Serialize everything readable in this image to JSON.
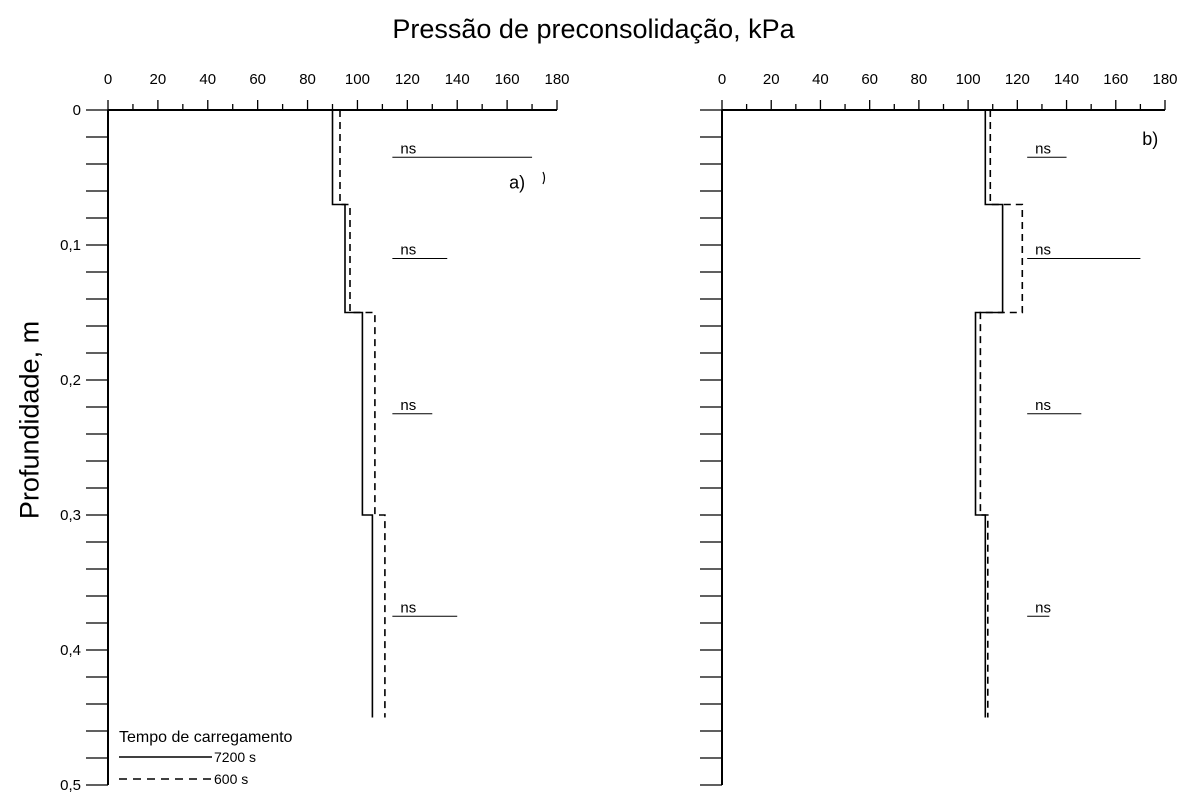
{
  "chart_data": {
    "type": "line",
    "title": "Pressão de preconsolidação, kPa",
    "ylabel": "Profundidade, m",
    "xlim": [
      0,
      180
    ],
    "ylim": [
      0,
      0.5
    ],
    "y_inverted": true,
    "x_ticks": [
      "0",
      "20",
      "40",
      "60",
      "80",
      "100",
      "120",
      "140",
      "160",
      "180"
    ],
    "y_ticks": [
      "0",
      "0,1",
      "0,2",
      "0,3",
      "0,4",
      "0,5"
    ],
    "legend": {
      "title": "Tempo de carregamento",
      "entries": [
        {
          "label": "7200 s",
          "style": "solid"
        },
        {
          "label": "600 s",
          "style": "dashed"
        }
      ]
    },
    "panels": [
      {
        "label": "a)",
        "series": [
          {
            "name": "7200 s",
            "style": "solid",
            "points": [
              [
                90,
                0.0
              ],
              [
                90,
                0.07
              ],
              [
                95,
                0.07
              ],
              [
                95,
                0.15
              ],
              [
                102,
                0.15
              ],
              [
                102,
                0.3
              ],
              [
                106,
                0.3
              ],
              [
                106,
                0.45
              ]
            ]
          },
          {
            "name": "600 s",
            "style": "dashed",
            "points": [
              [
                93,
                0.0
              ],
              [
                93,
                0.07
              ],
              [
                97,
                0.07
              ],
              [
                97,
                0.15
              ],
              [
                107,
                0.15
              ],
              [
                107,
                0.3
              ],
              [
                111,
                0.3
              ],
              [
                111,
                0.45
              ]
            ]
          }
        ],
        "annotations": [
          {
            "text": "ns",
            "y": 0.035,
            "x1": 114,
            "x2": 170
          },
          {
            "text": "ns",
            "y": 0.11,
            "x1": 114,
            "x2": 136
          },
          {
            "text": "ns",
            "y": 0.225,
            "x1": 114,
            "x2": 130
          },
          {
            "text": "ns",
            "y": 0.375,
            "x1": 114,
            "x2": 140
          }
        ]
      },
      {
        "label": "b)",
        "series": [
          {
            "name": "7200 s",
            "style": "solid",
            "points": [
              [
                107,
                0.0
              ],
              [
                107,
                0.07
              ],
              [
                114,
                0.07
              ],
              [
                114,
                0.15
              ],
              [
                103,
                0.15
              ],
              [
                103,
                0.3
              ],
              [
                107,
                0.3
              ],
              [
                107,
                0.45
              ]
            ]
          },
          {
            "name": "600 s",
            "style": "dashed",
            "points": [
              [
                109,
                0.0
              ],
              [
                109,
                0.07
              ],
              [
                122,
                0.07
              ],
              [
                122,
                0.15
              ],
              [
                105,
                0.15
              ],
              [
                105,
                0.3
              ],
              [
                108,
                0.3
              ],
              [
                108,
                0.45
              ]
            ]
          }
        ],
        "annotations": [
          {
            "text": "ns",
            "y": 0.035,
            "x1": 124,
            "x2": 140
          },
          {
            "text": "ns",
            "y": 0.11,
            "x1": 124,
            "x2": 170
          },
          {
            "text": "ns",
            "y": 0.225,
            "x1": 124,
            "x2": 146
          },
          {
            "text": "ns",
            "y": 0.375,
            "x1": 124,
            "x2": 133
          }
        ]
      }
    ]
  }
}
